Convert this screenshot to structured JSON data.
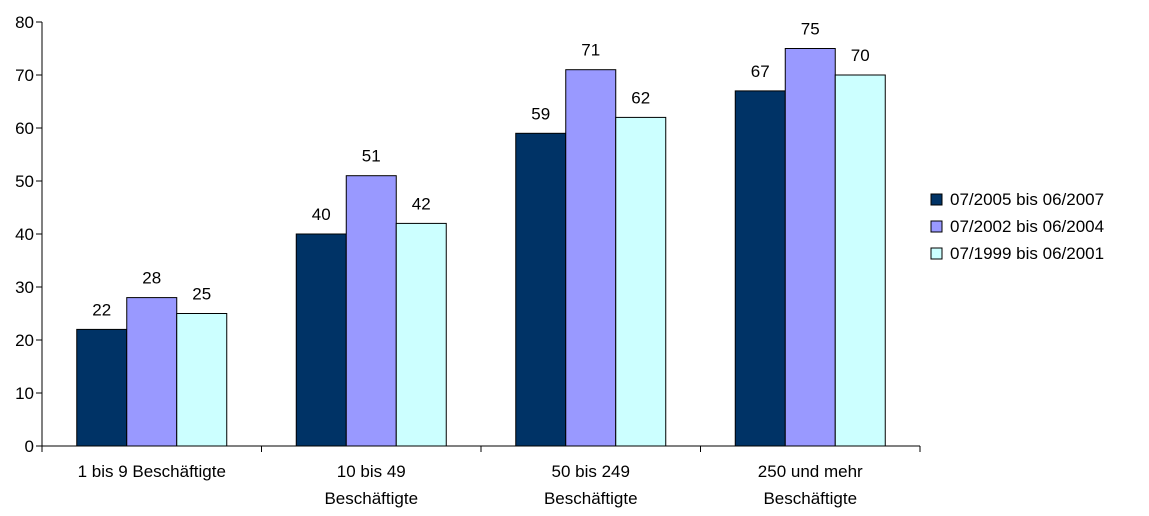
{
  "chart_data": {
    "type": "bar",
    "categories": [
      [
        "1 bis 9 Beschäftigte"
      ],
      [
        "10 bis 49",
        "Beschäftigte"
      ],
      [
        "50 bis 249",
        "Beschäftigte"
      ],
      [
        "250 und mehr",
        "Beschäftigte"
      ]
    ],
    "series": [
      {
        "name": "07/2005 bis 06/2007",
        "color": "#003366",
        "values": [
          22,
          40,
          59,
          67
        ]
      },
      {
        "name": "07/2002 bis 06/2004",
        "color": "#9999FF",
        "values": [
          28,
          51,
          71,
          75
        ]
      },
      {
        "name": "07/1999 bis 06/2001",
        "color": "#CCFFFF",
        "values": [
          25,
          42,
          62,
          70
        ]
      }
    ],
    "title": "",
    "xlabel": "",
    "ylabel": "",
    "ylim": [
      0,
      80
    ],
    "yticks": [
      0,
      10,
      20,
      30,
      40,
      50,
      60,
      70,
      80
    ],
    "grid": false,
    "legend_position": "right",
    "data_labels": true
  }
}
